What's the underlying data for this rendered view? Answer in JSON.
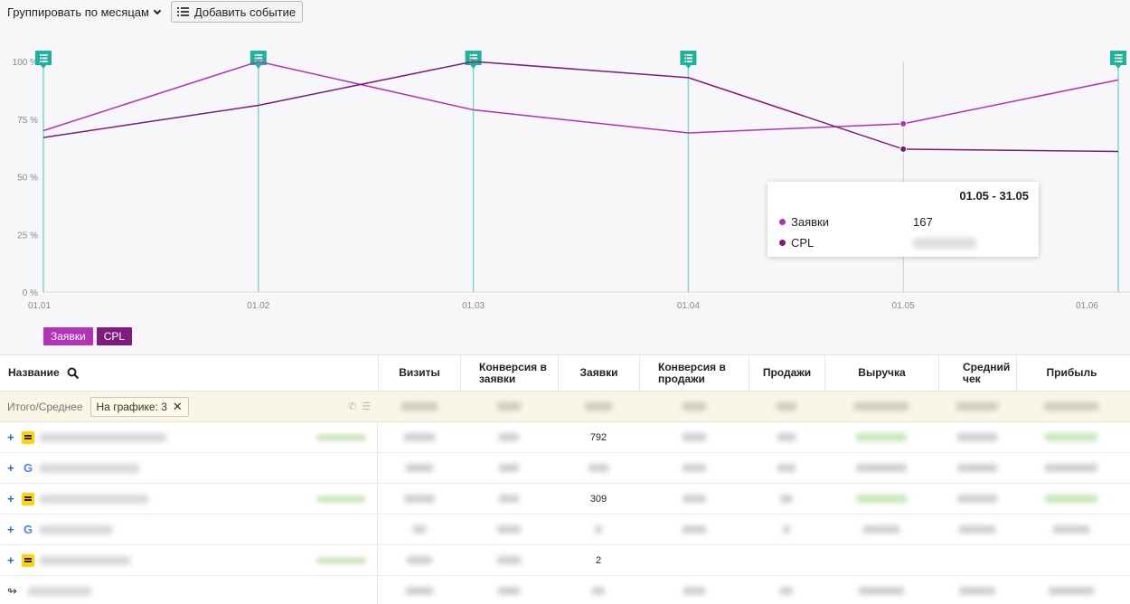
{
  "toolbar": {
    "group_label": "Группировать по месяцам",
    "add_event_label": "Добавить событие"
  },
  "chart_data": {
    "type": "line",
    "x": [
      "01.01",
      "01.02",
      "01.03",
      "01.04",
      "01.05",
      "01.06"
    ],
    "y_ticks": [
      "100 %",
      "75 %",
      "50 %",
      "25 %",
      "0 %"
    ],
    "ylim": [
      0,
      100
    ],
    "grid": true,
    "series": [
      {
        "name": "Заявки",
        "color": "#b033b5",
        "values": [
          70,
          100,
          79,
          69,
          73,
          92
        ]
      },
      {
        "name": "CPL",
        "color": "#7c1a7c",
        "values": [
          67,
          81,
          100,
          93,
          62,
          61
        ]
      }
    ],
    "event_markers_x": [
      "01.01",
      "01.02",
      "01.03",
      "01.04",
      "01.06"
    ],
    "hover_x": "01.05"
  },
  "tooltip": {
    "title": "01.05 - 31.05",
    "rows": [
      {
        "label": "Заявки",
        "value": "167",
        "color": "#b033b5"
      },
      {
        "label": "CPL",
        "value": "",
        "color": "#7c1a7c"
      }
    ]
  },
  "legend": [
    {
      "label": "Заявки",
      "color": "#b233b7"
    },
    {
      "label": "CPL",
      "color": "#7c1c7c"
    }
  ],
  "table": {
    "columns": {
      "name": "Название",
      "visits": "Визиты",
      "conv_leads": "Конверсия в заявки",
      "leads": "Заявки",
      "conv_sales": "Конверсия в продажи",
      "sales": "Продажи",
      "revenue": "Выручка",
      "avg_check": "Средний чек",
      "profit": "Прибыль"
    },
    "summary": {
      "label": "Итого/Среднее",
      "badge": "На графике: 3"
    },
    "rows": [
      {
        "source": "yandex",
        "leads": "792"
      },
      {
        "source": "google",
        "leads": ""
      },
      {
        "source": "yandex",
        "leads": "309"
      },
      {
        "source": "google",
        "leads": ""
      },
      {
        "source": "yandex",
        "leads": "2"
      },
      {
        "source": "direct",
        "leads": ""
      }
    ]
  }
}
